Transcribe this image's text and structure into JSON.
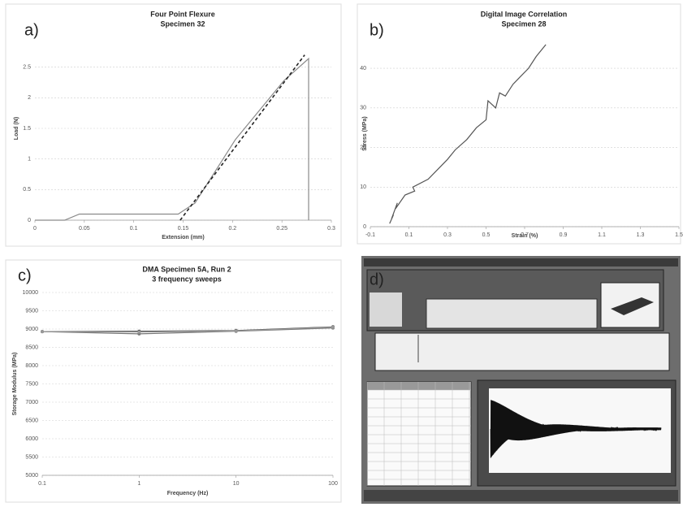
{
  "chart_data": [
    {
      "type": "line",
      "panel_label": "a)",
      "title": "Four Point Flexure",
      "subtitle": "Specimen 32",
      "x_label": "Extension (mm)",
      "y_label": "Load (N)",
      "xlim": [
        0,
        0.3
      ],
      "xticks": [
        0,
        0.05,
        0.1,
        0.15,
        0.2,
        0.25,
        0.3
      ],
      "ylim": [
        0,
        3
      ],
      "yticks": [
        0,
        0.5,
        1,
        1.5,
        2,
        2.5
      ],
      "grid": true,
      "series": [
        {
          "color": "#8a8a8a",
          "dashed": false,
          "x": [
            0,
            0.03,
            0.045,
            0.145,
            0.162,
            0.203,
            0.252,
            0.277,
            0.277
          ],
          "values": [
            0,
            0,
            0.1,
            0.1,
            0.28,
            1.32,
            2.28,
            2.64,
            0
          ]
        },
        {
          "color": "#222222",
          "dashed": true,
          "x": [
            0.147,
            0.273
          ],
          "values": [
            0,
            2.7
          ]
        }
      ]
    },
    {
      "type": "line",
      "panel_label": "b)",
      "title": "Digital Image Correlation",
      "subtitle": "Specimen 28",
      "x_label": "Strain (%)",
      "y_label": "Stress (MPa)",
      "xlim": [
        -0.1,
        1.5
      ],
      "xticks": [
        -0.1,
        0.1,
        0.3,
        0.5,
        0.7,
        0.9,
        1.1,
        1.3,
        1.5
      ],
      "ylim": [
        0,
        47
      ],
      "yticks": [
        0,
        10,
        20,
        30,
        40
      ],
      "grid": true,
      "series": [
        {
          "color": "#555555",
          "dashed": false,
          "x": [
            0,
            0.02,
            0.01,
            0.04,
            0.03,
            0.08,
            0.13,
            0.12,
            0.2,
            0.26,
            0.3,
            0.34,
            0.4,
            0.45,
            0.5,
            0.51,
            0.55,
            0.57,
            0.6,
            0.64,
            0.68,
            0.72,
            0.76,
            0.81
          ],
          "values": [
            0.8,
            3,
            2,
            6,
            4.5,
            8,
            9,
            10,
            12,
            15,
            17,
            19.4,
            22,
            25,
            27,
            31.8,
            30,
            33.8,
            33,
            36,
            38,
            40,
            43,
            46
          ]
        }
      ]
    },
    {
      "type": "line",
      "panel_label": "c)",
      "title": "DMA Specimen 5A, Run 2",
      "subtitle": "3 frequency sweeps",
      "x_label": "Frequency (Hz)",
      "y_label": "Storage Modulus (MPa)",
      "xscale": "log",
      "xlim": [
        0.1,
        100
      ],
      "xticks": [
        0.1,
        1,
        10,
        100
      ],
      "ylim": [
        5000,
        10000
      ],
      "yticks": [
        5000,
        5500,
        6000,
        6500,
        7000,
        7500,
        8000,
        8500,
        9000,
        9500,
        10000
      ],
      "grid": true,
      "series": [
        {
          "color": "#444444",
          "dashed": false,
          "x": [
            0.1,
            1,
            10,
            100
          ],
          "values": [
            8930,
            8940,
            8960,
            9060
          ]
        },
        {
          "color": "#777777",
          "dashed": false,
          "x": [
            0.1,
            1,
            10,
            100
          ],
          "values": [
            8930,
            8870,
            8940,
            9030
          ]
        },
        {
          "color": "#999999",
          "dashed": false,
          "x": [
            0.1,
            1,
            10,
            100
          ],
          "values": [
            8930,
            8920,
            8950,
            9050
          ]
        }
      ]
    }
  ],
  "panel_d": {
    "label": "d)"
  }
}
